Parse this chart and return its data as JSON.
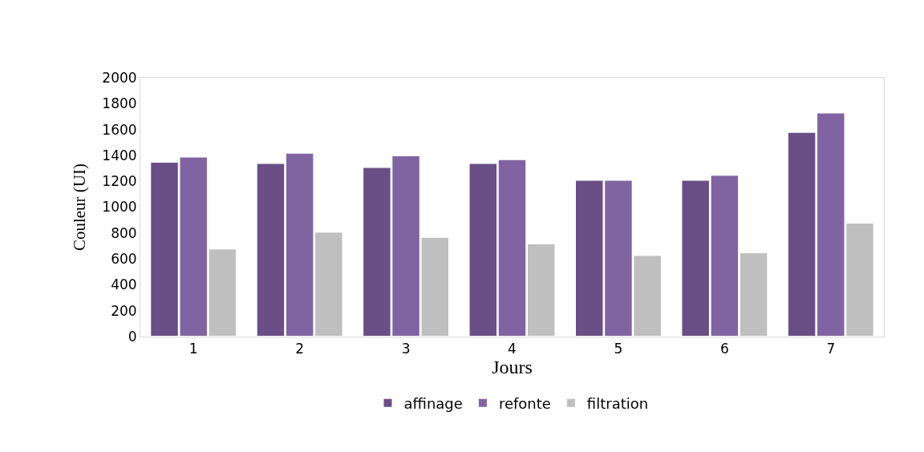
{
  "chart_data": {
    "type": "bar",
    "xlabel": "Jours",
    "ylabel": "Couleur (UI)",
    "categories": [
      "1",
      "2",
      "3",
      "4",
      "5",
      "6",
      "7"
    ],
    "series": [
      {
        "name": "affinage",
        "color": "#6a4f86",
        "values": [
          1350,
          1340,
          1310,
          1340,
          1210,
          1210,
          1580
        ]
      },
      {
        "name": "refonte",
        "color": "#8064a2",
        "values": [
          1390,
          1420,
          1400,
          1370,
          1210,
          1250,
          1730
        ]
      },
      {
        "name": "filtration",
        "color": "#bfbfbf",
        "values": [
          680,
          810,
          770,
          720,
          630,
          650,
          880
        ]
      }
    ],
    "ylim": [
      0,
      2000
    ],
    "yticks": [
      0,
      200,
      400,
      600,
      800,
      1000,
      1200,
      1400,
      1600,
      1800,
      2000
    ],
    "grid": false,
    "legend": "bottom"
  }
}
